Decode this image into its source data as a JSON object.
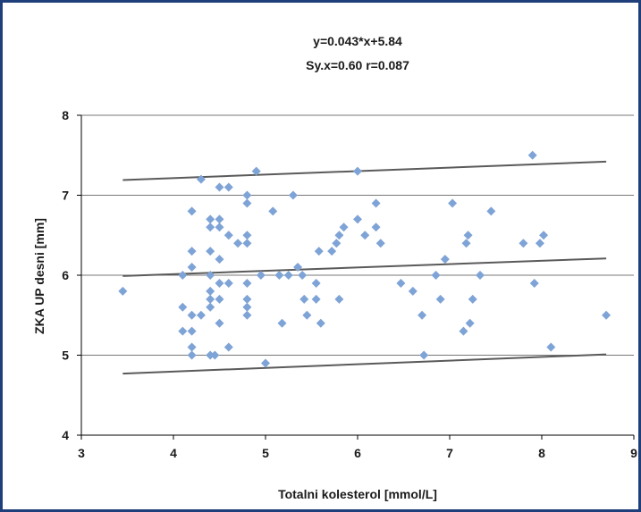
{
  "chart_data": {
    "type": "scatter",
    "title": "",
    "annotations": [
      "y=0.043*x+5.84",
      "Sy.x=0.60  r=0.087"
    ],
    "xlabel": "Totalni kolesterol [mmol/L]",
    "ylabel": "ZKA UP desni [mm]",
    "xlim": [
      3,
      9
    ],
    "ylim": [
      4,
      8
    ],
    "x_ticks": [
      3,
      4,
      5,
      6,
      7,
      8,
      9
    ],
    "y_ticks": [
      4,
      5,
      6,
      7,
      8
    ],
    "grid": "horizontal",
    "series": [
      {
        "type": "scatter",
        "color": "#7ea3d6",
        "points": [
          [
            3.45,
            5.8
          ],
          [
            4.1,
            6.0
          ],
          [
            4.1,
            5.6
          ],
          [
            4.1,
            5.3
          ],
          [
            4.2,
            6.8
          ],
          [
            4.2,
            6.3
          ],
          [
            4.2,
            6.1
          ],
          [
            4.2,
            5.5
          ],
          [
            4.2,
            5.3
          ],
          [
            4.2,
            5.1
          ],
          [
            4.2,
            5.0
          ],
          [
            4.3,
            7.2
          ],
          [
            4.3,
            5.5
          ],
          [
            4.4,
            6.7
          ],
          [
            4.4,
            6.6
          ],
          [
            4.4,
            6.3
          ],
          [
            4.4,
            6.0
          ],
          [
            4.4,
            5.8
          ],
          [
            4.4,
            5.7
          ],
          [
            4.4,
            5.6
          ],
          [
            4.4,
            5.0
          ],
          [
            4.45,
            5.0
          ],
          [
            4.5,
            7.1
          ],
          [
            4.5,
            6.7
          ],
          [
            4.5,
            6.6
          ],
          [
            4.5,
            6.2
          ],
          [
            4.5,
            5.9
          ],
          [
            4.5,
            5.7
          ],
          [
            4.5,
            5.4
          ],
          [
            4.6,
            7.1
          ],
          [
            4.6,
            6.5
          ],
          [
            4.6,
            5.9
          ],
          [
            4.6,
            5.1
          ],
          [
            4.7,
            6.4
          ],
          [
            4.8,
            7.0
          ],
          [
            4.8,
            6.9
          ],
          [
            4.8,
            6.5
          ],
          [
            4.8,
            6.4
          ],
          [
            4.8,
            5.9
          ],
          [
            4.8,
            5.7
          ],
          [
            4.8,
            5.6
          ],
          [
            4.8,
            5.5
          ],
          [
            4.9,
            7.3
          ],
          [
            4.95,
            6.0
          ],
          [
            5.0,
            4.9
          ],
          [
            5.08,
            6.8
          ],
          [
            5.15,
            6.0
          ],
          [
            5.18,
            5.4
          ],
          [
            5.25,
            6.0
          ],
          [
            5.3,
            7.0
          ],
          [
            5.35,
            6.1
          ],
          [
            5.4,
            6.0
          ],
          [
            5.42,
            5.7
          ],
          [
            5.45,
            5.5
          ],
          [
            5.55,
            5.9
          ],
          [
            5.55,
            5.7
          ],
          [
            5.58,
            6.3
          ],
          [
            5.6,
            5.4
          ],
          [
            5.72,
            6.3
          ],
          [
            5.77,
            6.4
          ],
          [
            5.8,
            6.5
          ],
          [
            5.8,
            5.7
          ],
          [
            5.85,
            6.6
          ],
          [
            6.0,
            7.3
          ],
          [
            6.0,
            6.7
          ],
          [
            6.08,
            6.5
          ],
          [
            6.2,
            6.9
          ],
          [
            6.2,
            6.6
          ],
          [
            6.25,
            6.4
          ],
          [
            6.47,
            5.9
          ],
          [
            6.6,
            5.8
          ],
          [
            6.7,
            5.5
          ],
          [
            6.72,
            5.0
          ],
          [
            6.85,
            6.0
          ],
          [
            6.9,
            5.7
          ],
          [
            6.95,
            6.2
          ],
          [
            7.03,
            6.9
          ],
          [
            7.15,
            5.3
          ],
          [
            7.18,
            6.4
          ],
          [
            7.2,
            6.5
          ],
          [
            7.22,
            5.4
          ],
          [
            7.25,
            5.7
          ],
          [
            7.33,
            6.0
          ],
          [
            7.45,
            6.8
          ],
          [
            7.8,
            6.4
          ],
          [
            7.9,
            7.5
          ],
          [
            7.92,
            5.9
          ],
          [
            7.98,
            6.4
          ],
          [
            8.02,
            6.5
          ],
          [
            8.1,
            5.1
          ],
          [
            8.7,
            5.5
          ]
        ]
      }
    ],
    "lines": [
      {
        "name": "upper",
        "from": [
          3.45,
          7.19
        ],
        "to": [
          8.7,
          7.42
        ]
      },
      {
        "name": "regression",
        "from": [
          3.45,
          5.99
        ],
        "to": [
          8.7,
          6.21
        ]
      },
      {
        "name": "lower",
        "from": [
          3.45,
          4.77
        ],
        "to": [
          8.7,
          5.01
        ]
      }
    ],
    "colors": {
      "border": "#1f3f7a",
      "grid": "#777777",
      "line": "#5a5a5a",
      "marker": "#7ea3d6"
    }
  }
}
